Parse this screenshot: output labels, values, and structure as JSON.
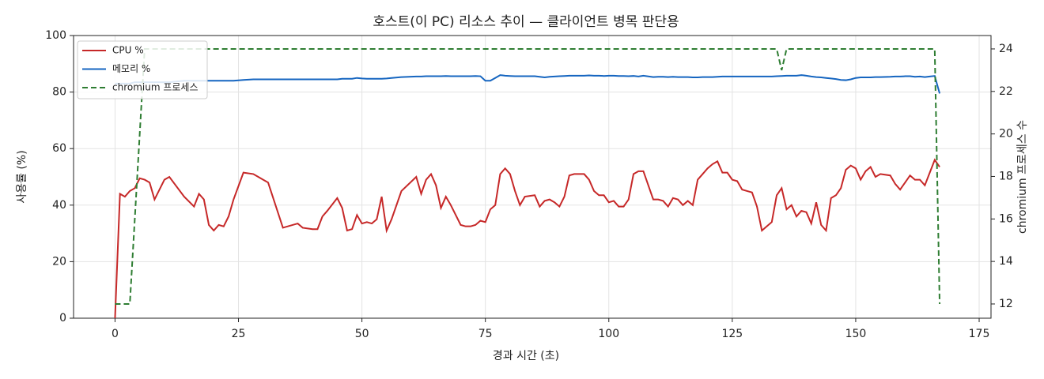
{
  "chart_data": {
    "type": "line",
    "title": "호스트(이 PC) 리소스 추이 — 클라이언트 병목 판단용",
    "x_label": "경과 시간 (초)",
    "y_label": "사용률 (%)",
    "y2_label": "chromium 프로세스 수",
    "xlim": [
      -8.4,
      177.4
    ],
    "xticks": [
      0,
      25,
      50,
      75,
      100,
      125,
      150,
      175
    ],
    "ylim": [
      0,
      100
    ],
    "yticks": [
      0,
      20,
      40,
      60,
      80,
      100
    ],
    "y2lim": [
      11.33,
      24.63
    ],
    "y2ticks": [
      12,
      14,
      16,
      18,
      20,
      22,
      24
    ],
    "grid": true,
    "legend": "upper left",
    "x": [
      0,
      1,
      2,
      3,
      4,
      5,
      6,
      7,
      8,
      10,
      11,
      14,
      16,
      17,
      18,
      19,
      20,
      21,
      22,
      23,
      24,
      26,
      28,
      29,
      30,
      31,
      34,
      37,
      38,
      40,
      41,
      42,
      43,
      45,
      46,
      47,
      48,
      49,
      50,
      51,
      52,
      53,
      54,
      55,
      56,
      58,
      61,
      62,
      63,
      64,
      65,
      66,
      67,
      68,
      70,
      71,
      72,
      73,
      74,
      75,
      76,
      77,
      78,
      79,
      80,
      81,
      82,
      83,
      85,
      86,
      87,
      88,
      89,
      90,
      91,
      92,
      93,
      95,
      96,
      97,
      98,
      99,
      100,
      101,
      102,
      103,
      104,
      105,
      106,
      107,
      109,
      110,
      111,
      112,
      113,
      114,
      115,
      116,
      117,
      118,
      119,
      120,
      121,
      122,
      123,
      124,
      125,
      126,
      127,
      128,
      129,
      130,
      131,
      133,
      134,
      135,
      136,
      137,
      138,
      139,
      140,
      141,
      142,
      143,
      144,
      145,
      146,
      147,
      148,
      149,
      150,
      151,
      152,
      153,
      154,
      155,
      157,
      158,
      159,
      160,
      161,
      162,
      163,
      164,
      165,
      166,
      167
    ],
    "series": [
      {
        "name": "CPU %",
        "color": "#c62828",
        "style": "solid",
        "values": [
          0,
          44,
          43,
          45,
          46,
          49.5,
          49,
          48,
          42,
          49,
          50,
          43,
          39.5,
          44,
          42,
          33,
          31,
          33,
          32.5,
          36,
          42,
          51.5,
          51,
          50,
          49,
          48,
          32,
          33.5,
          32,
          31.5,
          31.5,
          36,
          38,
          42.5,
          39,
          31,
          31.5,
          36.5,
          33.5,
          34,
          33.5,
          35,
          43,
          31,
          35,
          45,
          50,
          44,
          49,
          51,
          47,
          39,
          43,
          40,
          33,
          32.5,
          32.5,
          33,
          34.5,
          34,
          38.5,
          40,
          51,
          53,
          51,
          45,
          40,
          43,
          43.5,
          39.5,
          41.5,
          42,
          41,
          39.5,
          43,
          50.5,
          51,
          51,
          49,
          45,
          43.5,
          43.5,
          41,
          41.5,
          39.5,
          39.5,
          42,
          51,
          52,
          52,
          42,
          42,
          41.5,
          39.5,
          42.5,
          42,
          40,
          41.5,
          40,
          49,
          51,
          53,
          54.5,
          55.5,
          51.5,
          51.5,
          49,
          48.5,
          45.5,
          45,
          44.5,
          39.5,
          31,
          34,
          43.5,
          46,
          38.5,
          40,
          36,
          38,
          37.5,
          33.5,
          41,
          33,
          31,
          42.5,
          43.5,
          46,
          52.5,
          54,
          53,
          49,
          52,
          53.5,
          50,
          51,
          50.5,
          47.5,
          45.5,
          48,
          50.5,
          49,
          49,
          47,
          51.5,
          56,
          53.5
        ]
      },
      {
        "name": "메모리 %",
        "color": "#1565c0",
        "style": "solid",
        "values": [
          83,
          83,
          83,
          83,
          83.5,
          83.5,
          83.5,
          83.5,
          83.5,
          83.5,
          83.5,
          84,
          84,
          84,
          84,
          84,
          84,
          84,
          84,
          84,
          84,
          84.3,
          84.5,
          84.5,
          84.5,
          84.5,
          84.5,
          84.5,
          84.5,
          84.5,
          84.5,
          84.5,
          84.5,
          84.5,
          84.7,
          84.7,
          84.7,
          85,
          84.8,
          84.7,
          84.7,
          84.7,
          84.7,
          84.8,
          85,
          85.3,
          85.5,
          85.5,
          85.6,
          85.6,
          85.6,
          85.6,
          85.7,
          85.6,
          85.6,
          85.6,
          85.6,
          85.7,
          85.6,
          84,
          84,
          85,
          86,
          85.8,
          85.7,
          85.6,
          85.6,
          85.6,
          85.6,
          85.4,
          85.2,
          85.4,
          85.5,
          85.6,
          85.7,
          85.8,
          85.8,
          85.8,
          85.9,
          85.8,
          85.8,
          85.7,
          85.8,
          85.8,
          85.7,
          85.7,
          85.6,
          85.7,
          85.5,
          85.8,
          85.3,
          85.4,
          85.4,
          85.3,
          85.4,
          85.3,
          85.3,
          85.3,
          85.2,
          85.2,
          85.3,
          85.3,
          85.3,
          85.4,
          85.5,
          85.5,
          85.5,
          85.5,
          85.5,
          85.5,
          85.5,
          85.5,
          85.5,
          85.5,
          85.6,
          85.7,
          85.8,
          85.8,
          85.8,
          86,
          85.8,
          85.5,
          85.3,
          85.2,
          85,
          84.8,
          84.6,
          84.3,
          84.2,
          84.5,
          85,
          85.2,
          85.2,
          85.2,
          85.3,
          85.3,
          85.4,
          85.5,
          85.5,
          85.6,
          85.6,
          85.4,
          85.5,
          85.3,
          85.5,
          85.7,
          79.5
        ]
      },
      {
        "name": "chromium 프로세스",
        "color": "#2e7d32",
        "style": "dashed",
        "axis": "y2",
        "values": [
          12,
          12,
          12,
          12,
          16,
          20,
          24,
          24,
          24,
          24,
          24,
          24,
          24,
          24,
          24,
          24,
          24,
          24,
          24,
          24,
          24,
          24,
          24,
          24,
          24,
          24,
          24,
          24,
          24,
          24,
          24,
          24,
          24,
          24,
          24,
          24,
          24,
          24,
          24,
          24,
          24,
          24,
          24,
          24,
          24,
          24,
          24,
          24,
          24,
          24,
          24,
          24,
          24,
          24,
          24,
          24,
          24,
          24,
          24,
          24,
          24,
          24,
          24,
          24,
          24,
          24,
          24,
          24,
          24,
          24,
          24,
          24,
          24,
          24,
          24,
          24,
          24,
          24,
          24,
          24,
          24,
          24,
          24,
          24,
          24,
          24,
          24,
          24,
          24,
          24,
          24,
          24,
          24,
          24,
          24,
          24,
          24,
          24,
          24,
          24,
          24,
          24,
          24,
          24,
          24,
          24,
          24,
          24,
          24,
          24,
          24,
          24,
          24,
          24,
          24,
          23,
          24,
          24,
          24,
          24,
          24,
          24,
          24,
          24,
          24,
          24,
          24,
          24,
          24,
          24,
          24,
          24,
          24,
          24,
          24,
          24,
          24,
          24,
          24,
          24,
          24,
          24,
          24,
          24,
          24,
          24,
          12
        ]
      }
    ]
  }
}
